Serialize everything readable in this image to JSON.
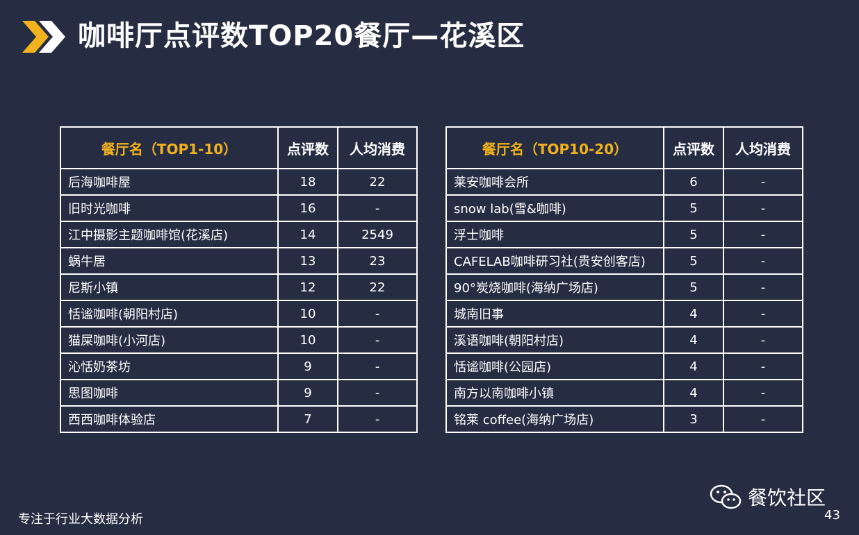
{
  "header": {
    "title": "咖啡厅点评数TOP20餐厅—花溪区"
  },
  "colors": {
    "accent": "#f2b21e",
    "background": "#262c42"
  },
  "left_table": {
    "columns": [
      "餐厅名（TOP1-10）",
      "点评数",
      "人均消费"
    ],
    "rows": [
      [
        "后海咖啡屋",
        "18",
        "22"
      ],
      [
        "旧时光咖啡",
        "16",
        "-"
      ],
      [
        "江中摄影主题咖啡馆(花溪店)",
        "14",
        "2549"
      ],
      [
        "蜗牛居",
        "13",
        "23"
      ],
      [
        "尼斯小镇",
        "12",
        "22"
      ],
      [
        "恬谧咖啡(朝阳村店)",
        "10",
        "-"
      ],
      [
        "猫屎咖啡(小河店)",
        "10",
        "-"
      ],
      [
        "沁恬奶茶坊",
        "9",
        "-"
      ],
      [
        "思图咖啡",
        "9",
        "-"
      ],
      [
        "西西咖啡体验店",
        "7",
        "-"
      ]
    ]
  },
  "right_table": {
    "columns": [
      "餐厅名（TOP10-20）",
      "点评数",
      "人均消费"
    ],
    "rows": [
      [
        "莱安咖啡会所",
        "6",
        "-"
      ],
      [
        "snow lab(雪&咖啡)",
        "5",
        "-"
      ],
      [
        "浮士咖啡",
        "5",
        "-"
      ],
      [
        "CAFELAB咖啡研习社(贵安创客店)",
        "5",
        "-"
      ],
      [
        "90°炭烧咖啡(海纳广场店)",
        "5",
        "-"
      ],
      [
        "城南旧事",
        "4",
        "-"
      ],
      [
        "溪语咖啡(朝阳村店)",
        "4",
        "-"
      ],
      [
        "恬谧咖啡(公园店)",
        "4",
        "-"
      ],
      [
        "南方以南咖啡小镇",
        "4",
        "-"
      ],
      [
        "铭莱 coffee(海纳广场店)",
        "3",
        "-"
      ]
    ]
  },
  "footer": {
    "tagline": "专注于行业大数据分析",
    "brand": "餐饮社区",
    "brand_icon": "wechat-icon",
    "page_number": "43"
  }
}
